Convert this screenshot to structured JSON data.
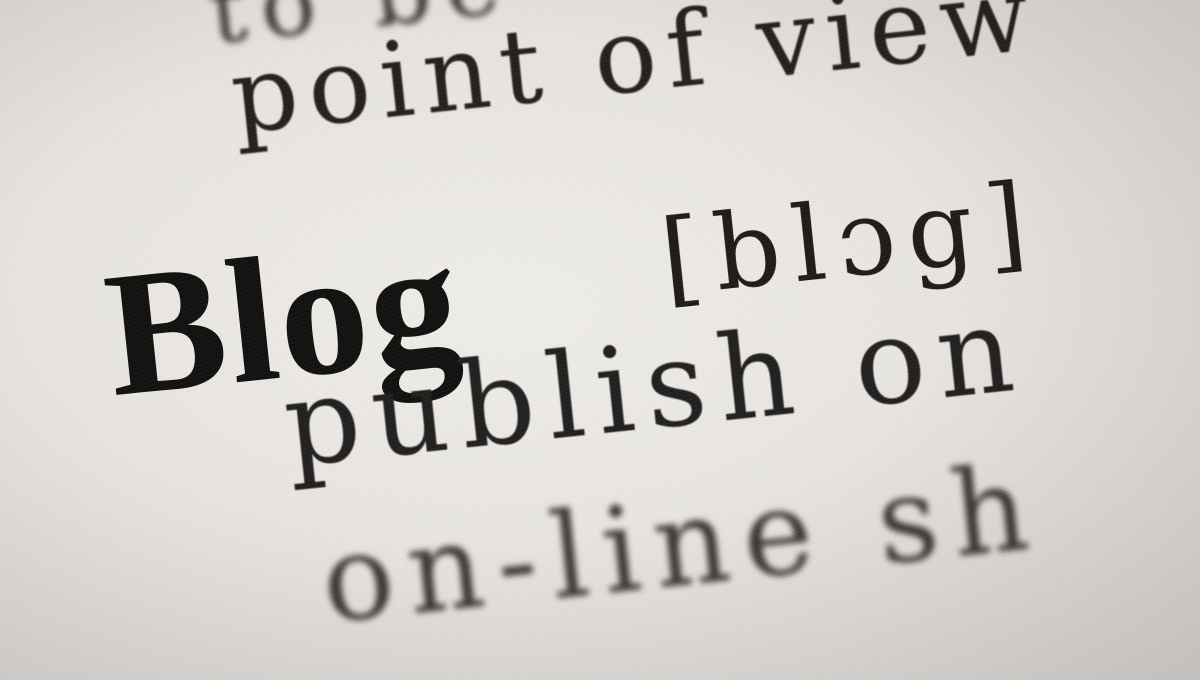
{
  "photo": {
    "lines": {
      "top_fragment": "to be",
      "point_of_view": "point of view",
      "headword": "Blog",
      "pronunciation": "[blɔg]",
      "publish_on": "publish on",
      "online_fragment": "on-line sh"
    },
    "colors": {
      "paper": "#e9e6e2",
      "ink": "#1d1b1a"
    }
  }
}
